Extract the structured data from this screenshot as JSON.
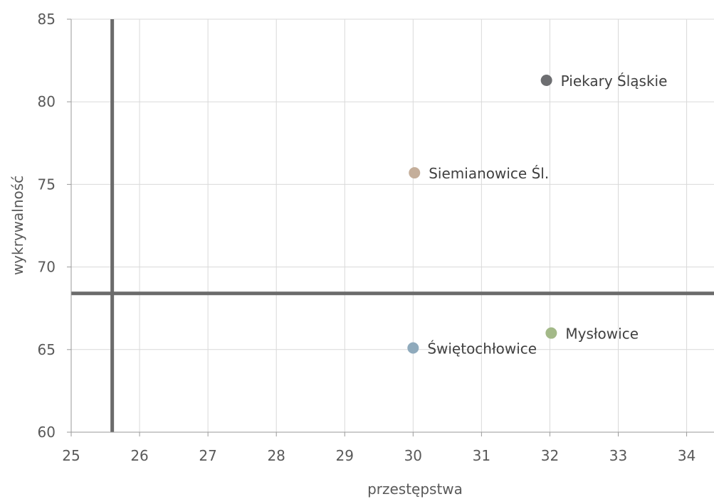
{
  "chart_data": {
    "type": "scatter",
    "title": "",
    "xlabel": "przestępstwa",
    "ylabel": "wykrywalność",
    "xlim": [
      25,
      34.4
    ],
    "ylim": [
      60,
      85
    ],
    "x_ticks": [
      25,
      26,
      27,
      28,
      29,
      30,
      31,
      32,
      33,
      34
    ],
    "y_ticks": [
      60,
      65,
      70,
      75,
      80,
      85
    ],
    "grid": true,
    "reference_lines": {
      "x": 25.6,
      "y": 68.4
    },
    "points": [
      {
        "label": "Piekary Śląskie",
        "x": 31.95,
        "y": 81.3,
        "color": "#6d6e71"
      },
      {
        "label": "Siemianowice Śl.",
        "x": 30.02,
        "y": 75.7,
        "color": "#c4ae9a"
      },
      {
        "label": "Mysłowice",
        "x": 32.02,
        "y": 66.0,
        "color": "#a3b988"
      },
      {
        "label": "Świętochłowice",
        "x": 30.0,
        "y": 65.1,
        "color": "#8faabc"
      }
    ]
  }
}
